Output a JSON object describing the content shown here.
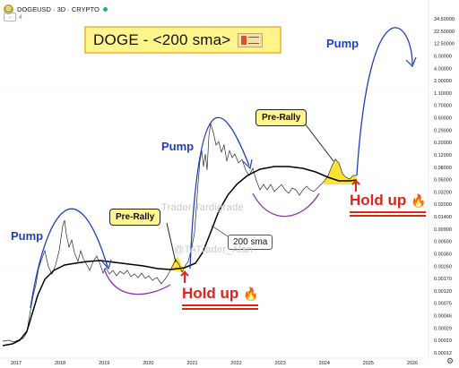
{
  "header": {
    "symbol": "DOGEUSD · 3D · CRYPTO",
    "indicator_count": "4",
    "symbol_icon": "doge-coin-icon"
  },
  "title_box": {
    "text": "DOGE - <200 sma>"
  },
  "annotations": {
    "pump": "Pump",
    "pre_rally": "Pre-Rally",
    "hold_up": "Hold up",
    "sma_label": "200 sma",
    "watermark_1": "Trader Tardigrade",
    "watermark_2": "@TATrader_Alan"
  },
  "price_axis": {
    "ticks": [
      "34.50000",
      "22.50000",
      "12.50000",
      "6.00000",
      "4.00000",
      "2.00000",
      "1.10000",
      "0.70000",
      "0.50000",
      "0.29000",
      "0.20000",
      "0.12000",
      "0.08000",
      "0.05000",
      "0.03200",
      "0.02000",
      "0.01400",
      "0.00900",
      "0.00500",
      "0.00360",
      "0.00260",
      "0.00170",
      "0.00120",
      "0.00075",
      "0.00046",
      "0.00029",
      "0.00019",
      "0.00012"
    ]
  },
  "time_axis": {
    "ticks": [
      "2017",
      "2018",
      "2019",
      "2020",
      "2021",
      "2022",
      "2023",
      "2024",
      "2025",
      "2026"
    ]
  },
  "colors": {
    "price_line": "#2b2b2b",
    "sma": "#000000",
    "pump_arc": "#1f3fbf",
    "hold_arc": "#8e2fb6",
    "highlight": "#ffe234",
    "hold_text": "#e0241b"
  }
}
